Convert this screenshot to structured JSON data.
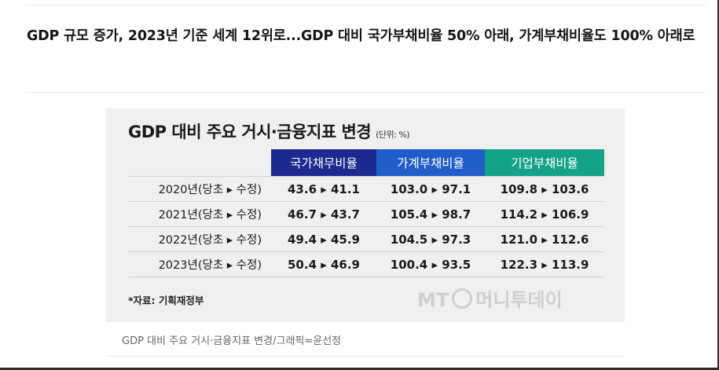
{
  "article": {
    "headline": "GDP 규모 증가, 2023년 기준 세계 12위로...GDP 대비 국가부채비율 50% 아래, 가계부채비율도 100% 아래로"
  },
  "figure": {
    "title": "GDP 대비 주요 거시·금융지표 변경",
    "unit": "(단위: %)",
    "columns": [
      "국가채무비율",
      "가계부채비율",
      "기업부채비율"
    ],
    "header_colors": [
      "#1d2a90",
      "#1f5dc9",
      "#14a389"
    ],
    "rows": [
      {
        "label": "2020년(당초 ▸ 수정)",
        "values": [
          "43.6 ▸ 41.1",
          "103.0 ▸ 97.1",
          "109.8 ▸ 103.6"
        ]
      },
      {
        "label": "2021년(당초 ▸ 수정)",
        "values": [
          "46.7 ▸ 43.7",
          "105.4 ▸ 98.7",
          "114.2 ▸ 106.9"
        ]
      },
      {
        "label": "2022년(당초 ▸ 수정)",
        "values": [
          "49.4 ▸ 45.9",
          "104.5 ▸ 97.3",
          "121.0 ▸ 112.6"
        ]
      },
      {
        "label": "2023년(당초 ▸ 수정)",
        "values": [
          "50.4 ▸ 46.9",
          "100.4 ▸ 93.5",
          "122.3 ▸ 113.9"
        ]
      }
    ],
    "source": "*자료: 기획재정부",
    "watermark_left": "MT",
    "watermark_right": "머니투데이"
  },
  "caption": "GDP 대비 주요 거시·금융지표 변경/그래픽=윤선정"
}
